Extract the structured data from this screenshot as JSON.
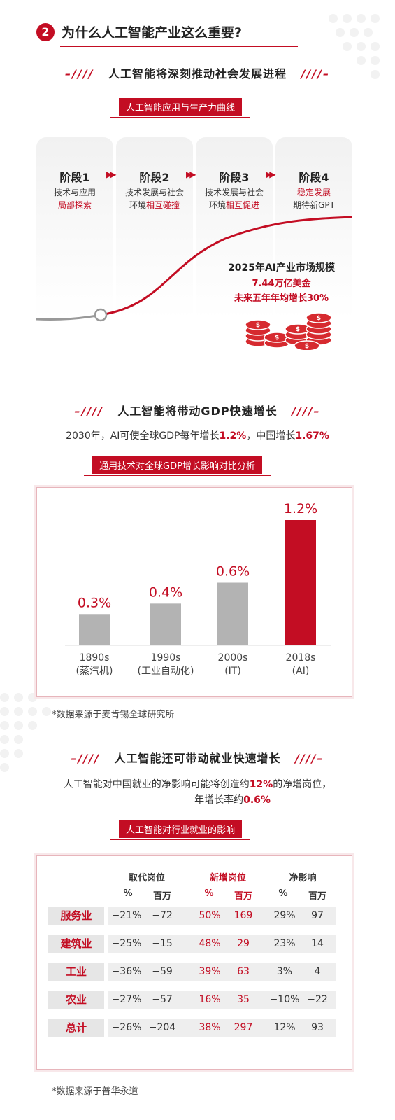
{
  "section": {
    "number": "2",
    "title": "为什么人工智能产业这么重要?"
  },
  "dash_left": "–////",
  "dash_right": "////–",
  "part1": {
    "title": "人工智能将深刻推动社会发展进程",
    "pill": "人工智能应用与生产力曲线",
    "stages": [
      {
        "name": "阶段1",
        "line1": "技术与应用",
        "line2": "局部探索"
      },
      {
        "name": "阶段2",
        "line1": "技术发展与社会",
        "line2a": "环境",
        "line2b": "相互碰撞"
      },
      {
        "name": "阶段3",
        "line1": "技术发展与社会",
        "line2a": "环境",
        "line2b": "相互促进"
      },
      {
        "name": "阶段4",
        "line1": "稳定发展",
        "line2": "期待新GPT"
      }
    ],
    "market": {
      "line1": "2025年AI产业市场规模",
      "line2": "7.44万亿美金",
      "line3": "未来五年年均增长30%"
    },
    "coin_symbol": "$"
  },
  "part2": {
    "title": "人工智能将带动GDP快速增长",
    "lead_a": "2030年，AI可使全球GDP每年增长",
    "lead_b": "1.2%",
    "lead_c": "，中国增长",
    "lead_d": "1.67%",
    "pill": "通用技术对全球GDP增长影响对比分析",
    "note": "*数据来源于麦肯锡全球研究所"
  },
  "chart_data": {
    "type": "bar",
    "categories": [
      "1890s (蒸汽机)",
      "1990s (工业自动化)",
      "2000s (IT)",
      "2018s (AI)"
    ],
    "cat_line1": [
      "1890s",
      "1990s",
      "2000s",
      "2018s"
    ],
    "cat_line2": [
      "(蒸汽机)",
      "(工业自动化)",
      "(IT)",
      "(AI)"
    ],
    "values": [
      0.3,
      0.4,
      0.6,
      1.2
    ],
    "value_labels": [
      "0.3%",
      "0.4%",
      "0.6%",
      "1.2%"
    ],
    "colors": [
      "#b3b3b3",
      "#b3b3b3",
      "#b3b3b3",
      "#c30d23"
    ],
    "ylim": [
      0,
      1.2
    ],
    "title": "",
    "xlabel": "",
    "ylabel": "",
    "grid": false
  },
  "part3": {
    "title": "人工智能还可带动就业快速增长",
    "lead1_a": "人工智能对中国就业的净影响可能将创造约",
    "lead1_b": "12%",
    "lead1_c": "的净增岗位，",
    "lead2_a": "年增长率约",
    "lead2_b": "0.6%",
    "pill": "人工智能对行业就业的影响",
    "note": "*数据来源于普华永道",
    "table": {
      "groups": [
        "取代岗位",
        "新增岗位",
        "净影响"
      ],
      "subheads": [
        "%",
        "百万",
        "%",
        "百万",
        "%",
        "百万"
      ],
      "rows": [
        {
          "label": "服务业",
          "cells": [
            "−21%",
            "−72",
            "50%",
            "169",
            "29%",
            "97"
          ]
        },
        {
          "label": "建筑业",
          "cells": [
            "−25%",
            "−15",
            "48%",
            "29",
            "23%",
            "14"
          ]
        },
        {
          "label": "工业",
          "cells": [
            "−36%",
            "−59",
            "39%",
            "63",
            "3%",
            "4"
          ]
        },
        {
          "label": "农业",
          "cells": [
            "−27%",
            "−57",
            "16%",
            "35",
            "−10%",
            "−22"
          ]
        },
        {
          "label": "总计",
          "cells": [
            "−26%",
            "−204",
            "38%",
            "297",
            "12%",
            "93"
          ]
        }
      ]
    }
  },
  "colors": {
    "accent": "#c30d23",
    "bar_gray": "#b3b3b3",
    "coin": "#d62a2f"
  }
}
